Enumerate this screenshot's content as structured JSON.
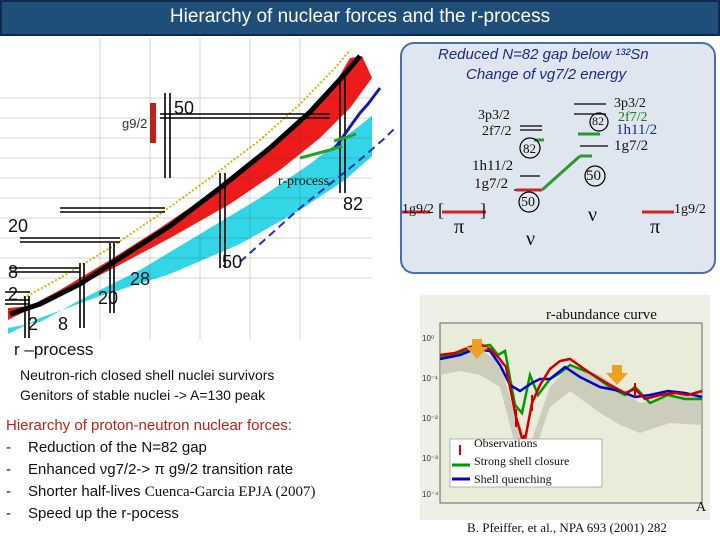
{
  "title": "Hierarchy of nuclear forces and the r-process",
  "chart_labels": {
    "n50": "50",
    "n82": "82",
    "n28": "28",
    "n20a": "20",
    "n8": "8",
    "n2": "2",
    "z50": "50",
    "z28": "28",
    "z20": "20",
    "z2": "2",
    "z8": "8",
    "g92": "g9/2",
    "rprocess": "r-process"
  },
  "levels": {
    "heading1": "Reduced N=82 gap below ¹³²Sn",
    "heading2": "Change of νg7/2 energy",
    "p32a": "3p3/2",
    "f72a": "2f7/2",
    "magic82a": "82",
    "h112a": "1h11/2",
    "g72a": "1g7/2",
    "magic50a": "50",
    "g92left": "1g9/2",
    "bracket_l": "[",
    "bracket_r": "]",
    "pi_left": "π",
    "nu_left": "ν",
    "p32b": "3p3/2",
    "f72b": "2f7/2",
    "magic82b": "82",
    "h112b": "1h11/2",
    "g72b": "1g7/2",
    "magic50b": "50",
    "nu_right": "ν",
    "pi_right": "π",
    "g92right": "1g9/2"
  },
  "abundance": {
    "title": "r-abundance curve",
    "legend_obs": "Observations",
    "legend_strong": "Strong shell closure",
    "legend_quench": "Shell quenching",
    "axis_a": "A",
    "ytick1": "10⁰",
    "ytick2": "10⁻¹",
    "ytick3": "10⁻²",
    "ytick4": "10⁻³",
    "ytick5": "10⁻⁴",
    "colors": {
      "obs": "#cc0000",
      "strong": "#009900",
      "quench": "#0000cc"
    }
  },
  "caption": "B. Pfeiffer, et al., NPA 693 (2001) 282",
  "rprocess": {
    "heading": "r –process",
    "line1": "Neutron-rich closed shell nuclei survivors",
    "line2": "Genitors of stable nuclei -> A=130 peak"
  },
  "hierarchy": {
    "heading": "Hierarchy of proton-neutron nuclear forces:",
    "dash": "-",
    "item1": "Reduction of the N=82 gap",
    "item2": "Enhanced νg7/2-> π g9/2 transition rate",
    "item3a": "Shorter half-lives",
    "item3b": "Cuenca-Garcia EPJA (2007)",
    "item4": "Speed up the r-pocess"
  }
}
